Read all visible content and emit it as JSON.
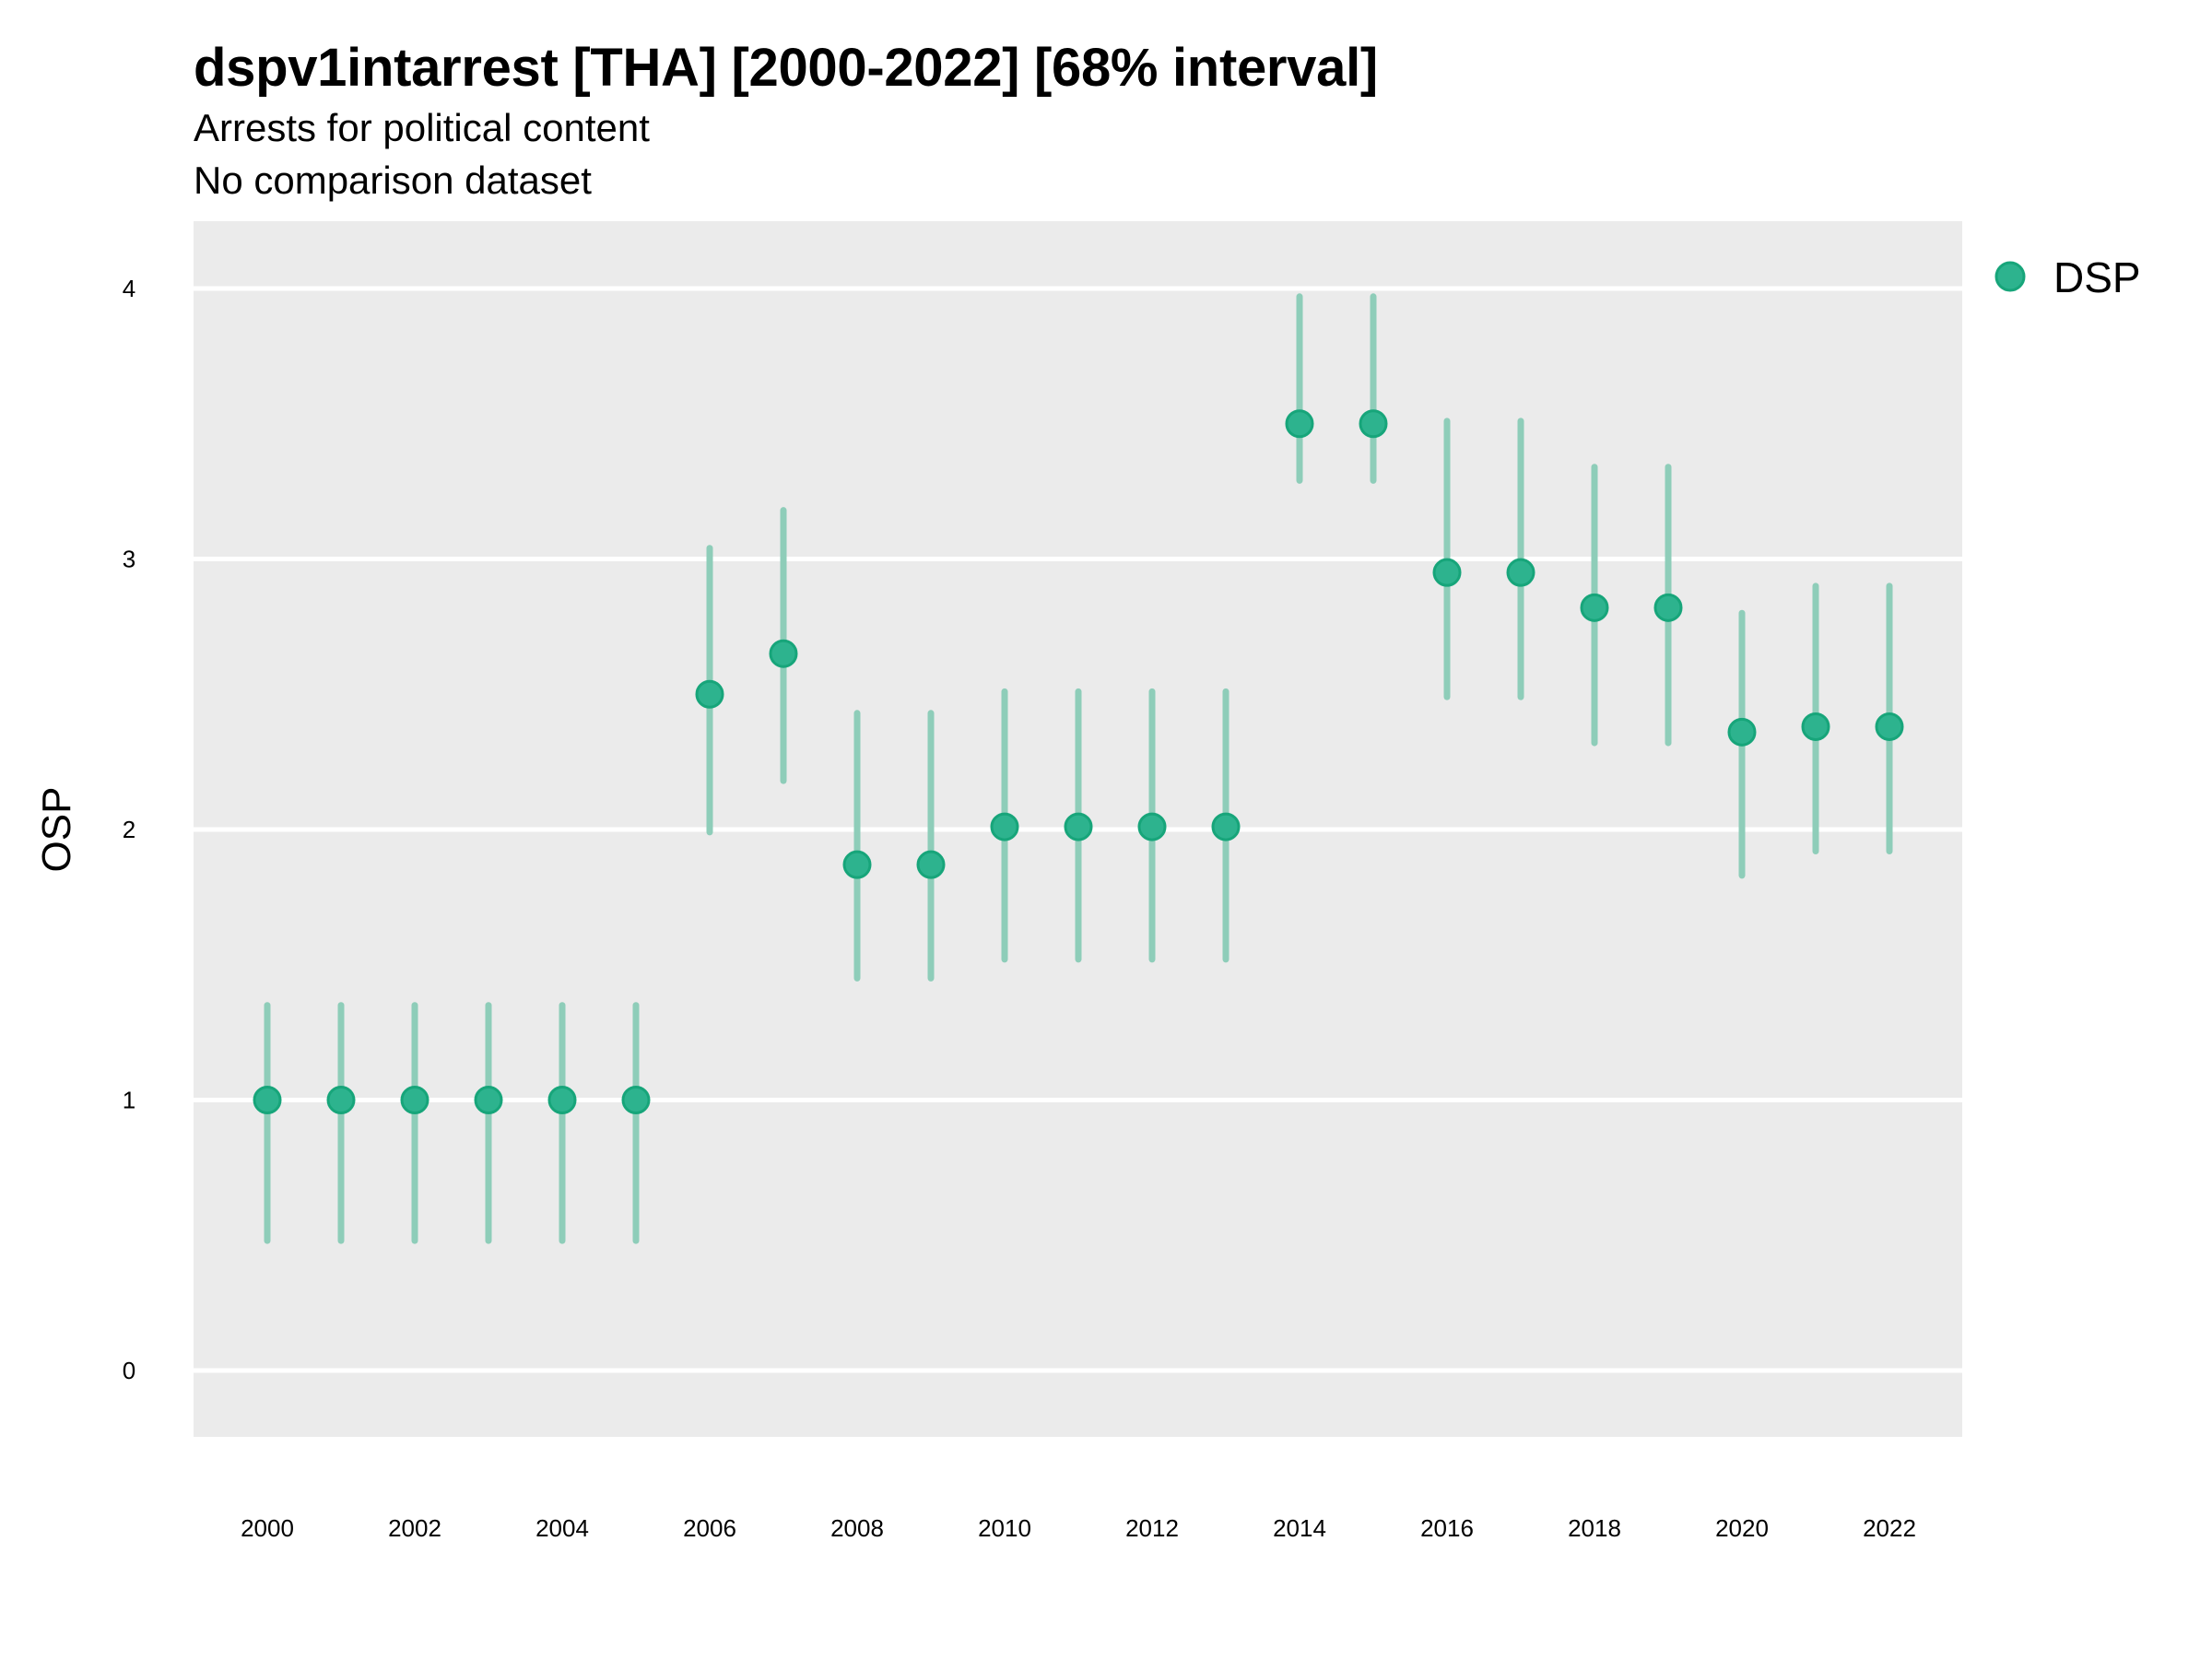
{
  "chart_data": {
    "type": "scatter",
    "title": "dspv1intarrest [THA] [2000-2022] [68% interval]",
    "subtitle_lines": [
      "Arrests for political content",
      "No comparison dataset"
    ],
    "xlabel": "",
    "ylabel": "OSP",
    "xlim": [
      1999,
      2023
    ],
    "ylim": [
      -0.25,
      4.25
    ],
    "x_ticks": [
      2000,
      2002,
      2004,
      2006,
      2008,
      2010,
      2012,
      2014,
      2016,
      2018,
      2020,
      2022
    ],
    "x_tick_labels": [
      "2000",
      "2002",
      "2004",
      "2006",
      "2008",
      "2010",
      "2012",
      "2014",
      "2016",
      "2018",
      "2020",
      "2022"
    ],
    "y_ticks": [
      0,
      1,
      2,
      3,
      4
    ],
    "y_tick_labels": [
      "0",
      "1",
      "2",
      "3",
      "4"
    ],
    "grid": true,
    "legend": {
      "position": "right",
      "entries": [
        "DSP"
      ]
    },
    "colors": {
      "point_fill": "#2db38e",
      "point_stroke": "#17a57a",
      "errorbar": "#8ecdb9",
      "panel_bg": "#ebebeb",
      "grid": "#ffffff"
    },
    "series": [
      {
        "name": "DSP",
        "x": [
          2000,
          2001,
          2002,
          2003,
          2004,
          2005,
          2006,
          2007,
          2008,
          2009,
          2010,
          2011,
          2012,
          2013,
          2014,
          2015,
          2016,
          2017,
          2018,
          2019,
          2020,
          2021,
          2022
        ],
        "y": [
          1.0,
          1.0,
          1.0,
          1.0,
          1.0,
          1.0,
          2.5,
          2.65,
          1.87,
          1.87,
          2.01,
          2.01,
          2.01,
          2.01,
          3.5,
          3.5,
          2.95,
          2.95,
          2.82,
          2.82,
          2.36,
          2.38,
          2.38
        ],
        "lower": [
          0.48,
          0.48,
          0.48,
          0.48,
          0.48,
          0.48,
          1.99,
          2.18,
          1.45,
          1.45,
          1.52,
          1.52,
          1.52,
          1.52,
          3.29,
          3.29,
          2.49,
          2.49,
          2.32,
          2.32,
          1.83,
          1.92,
          1.92
        ],
        "upper": [
          1.35,
          1.35,
          1.35,
          1.35,
          1.35,
          1.35,
          3.04,
          3.18,
          2.43,
          2.43,
          2.51,
          2.51,
          2.51,
          2.51,
          3.97,
          3.97,
          3.51,
          3.51,
          3.34,
          3.34,
          2.8,
          2.9,
          2.9
        ]
      }
    ]
  }
}
